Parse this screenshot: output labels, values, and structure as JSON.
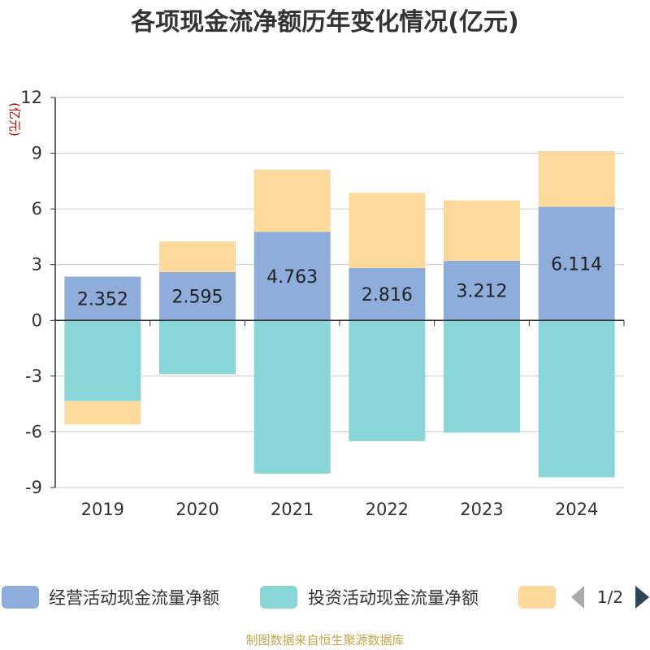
{
  "chart_data": {
    "type": "bar",
    "stacked": true,
    "title": "各项现金流净额历年变化情况(亿元)",
    "ylabel": "(亿元)",
    "ylim": [
      -9,
      12
    ],
    "yticks": [
      -9,
      -6,
      -3,
      0,
      3,
      6,
      9,
      12
    ],
    "grid": true,
    "categories": [
      "2019",
      "2020",
      "2021",
      "2022",
      "2023",
      "2024"
    ],
    "series": [
      {
        "name": "经营活动现金流量净额",
        "color": "#8eaddb",
        "values": [
          2.352,
          2.595,
          4.763,
          2.816,
          3.212,
          6.114
        ],
        "labels": [
          "2.352",
          "2.595",
          "4.763",
          "2.816",
          "3.212",
          "6.114"
        ]
      },
      {
        "name": "投资活动现金流量净额",
        "color": "#88d6d8",
        "values": [
          -4.35,
          -2.9,
          -8.25,
          -6.5,
          -6.05,
          -8.45
        ]
      },
      {
        "name": "",
        "color": "#fdd99b",
        "values": [
          -1.25,
          1.65,
          3.35,
          4.05,
          3.25,
          3.0
        ]
      }
    ],
    "legend": {
      "placement": "bottom",
      "page": "1/2"
    },
    "source": "制图数据来自恒生聚源数据库"
  }
}
